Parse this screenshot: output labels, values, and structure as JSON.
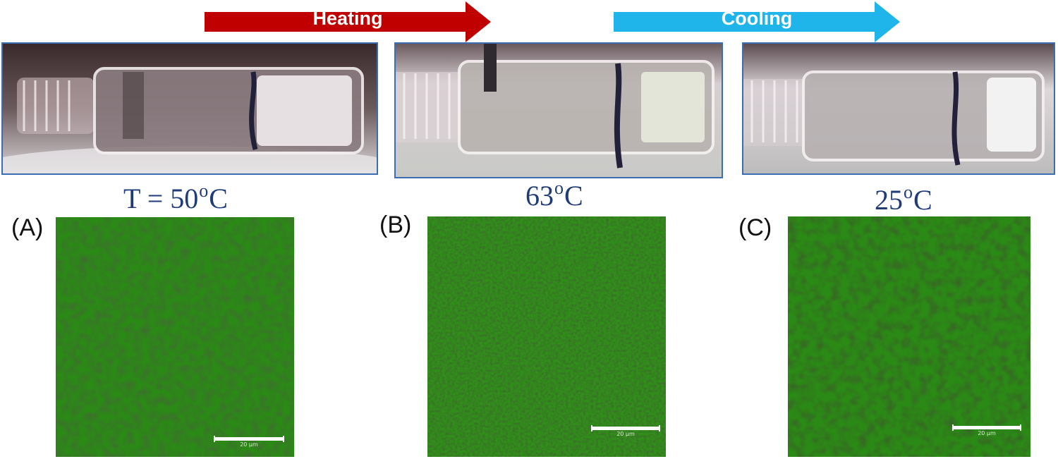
{
  "arrows": {
    "heating": {
      "label": "Heating",
      "color": "#c00000"
    },
    "cooling": {
      "label": "Cooling",
      "color": "#1fb4ea"
    }
  },
  "photos": [
    {
      "temp_prefix": "T = 50",
      "degree": "o",
      "unit": "C"
    },
    {
      "temp_prefix": "63",
      "degree": "o",
      "unit": "C"
    },
    {
      "temp_prefix": "25",
      "degree": "o",
      "unit": "C"
    }
  ],
  "panels": [
    {
      "letter": "(A)",
      "scale_label": "20 µm"
    },
    {
      "letter": "(B)",
      "scale_label": "20 µm"
    },
    {
      "letter": "(C)",
      "scale_label": "20 µm"
    }
  ],
  "colors": {
    "photo_border": "#3b6db3",
    "temp_text": "#1f3b78",
    "micro_green": "#1f6e10"
  }
}
